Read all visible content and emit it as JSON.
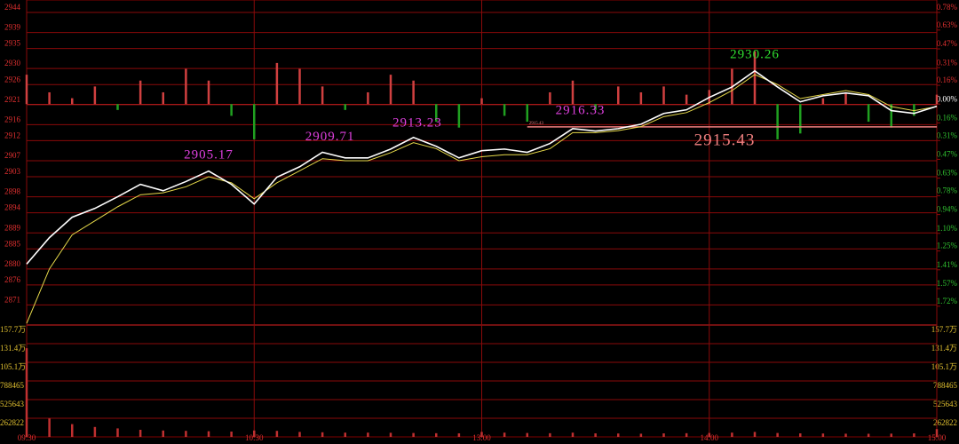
{
  "chart_data": {
    "type": "intraday",
    "x": [
      0,
      6,
      12,
      18,
      24,
      30,
      36,
      42,
      48,
      54,
      60,
      66,
      72,
      78,
      84,
      90,
      96,
      102,
      108,
      114,
      120,
      126,
      132,
      138,
      144,
      150,
      156,
      162,
      168,
      174,
      180,
      186,
      192,
      198,
      204,
      210,
      216,
      222,
      228,
      234,
      240
    ],
    "xlim": [
      0,
      240
    ],
    "xticks": [
      {
        "value": 0,
        "label": "09:30"
      },
      {
        "value": 60,
        "label": "10:30"
      },
      {
        "value": 120,
        "label": "13:00"
      },
      {
        "value": 180,
        "label": "14:00"
      },
      {
        "value": 240,
        "label": "15:00"
      }
    ],
    "ylim": [
      2866,
      2944
    ],
    "yticks": [
      2944,
      2939,
      2935,
      2930,
      2926,
      2921,
      2916,
      2912,
      2907,
      2903,
      2898,
      2894,
      2889,
      2885,
      2880,
      2876,
      2871
    ],
    "y2lim": [
      -1.88,
      0.78
    ],
    "y2ticks": [
      {
        "value": 0.78,
        "label": "0.78%"
      },
      {
        "value": 0.63,
        "label": "0.63%"
      },
      {
        "value": 0.47,
        "label": "0.47%"
      },
      {
        "value": 0.31,
        "label": "0.31%"
      },
      {
        "value": 0.16,
        "label": "0.16%"
      },
      {
        "value": 0,
        "label": "0.00%"
      },
      {
        "value": -0.16,
        "label": "0.16%"
      },
      {
        "value": -0.31,
        "label": "0.31%"
      },
      {
        "value": -0.47,
        "label": "0.47%"
      },
      {
        "value": -0.63,
        "label": "0.63%"
      },
      {
        "value": -0.78,
        "label": "0.78%"
      },
      {
        "value": -0.94,
        "label": "0.94%"
      },
      {
        "value": -1.1,
        "label": "1.10%"
      },
      {
        "value": -1.25,
        "label": "1.25%"
      },
      {
        "value": -1.41,
        "label": "1.41%"
      },
      {
        "value": -1.57,
        "label": "1.57%"
      },
      {
        "value": -1.72,
        "label": "1.72%"
      }
    ],
    "volume_lim": [
      0,
      1576932
    ],
    "volume_ticks": [
      {
        "value": 1576932,
        "label": "157.7万"
      },
      {
        "value": 1314110,
        "label": "131.4万"
      },
      {
        "value": 1051288,
        "label": "105.1万"
      },
      788465,
      525643,
      262822
    ],
    "series": [
      {
        "color": "#ffffff",
        "values": [
          2881.2,
          2887.8,
          2892.9,
          2895.1,
          2898.0,
          2901.1,
          2899.5,
          2901.8,
          2904.4,
          2901.1,
          2896.2,
          2902.9,
          2905.5,
          2909.1,
          2907.7,
          2907.7,
          2909.9,
          2912.8,
          2910.6,
          2907.7,
          2909.5,
          2909.9,
          2909.1,
          2911.3,
          2915.0,
          2914.4,
          2915.0,
          2916.1,
          2918.8,
          2919.7,
          2922.8,
          2925.4,
          2929.4,
          2925.4,
          2921.7,
          2923.2,
          2923.9,
          2923.2,
          2919.5,
          2918.8,
          2920.6
        ]
      },
      {
        "color": "#e6d94a",
        "values": [
          2866.4,
          2880.0,
          2888.5,
          2892.0,
          2895.5,
          2898.5,
          2899.0,
          2900.5,
          2903.0,
          2901.5,
          2897.5,
          2901.5,
          2904.5,
          2907.5,
          2907.0,
          2907.0,
          2909.0,
          2911.5,
          2910.0,
          2907.0,
          2908.0,
          2908.5,
          2908.5,
          2910.0,
          2914.0,
          2914.0,
          2914.5,
          2915.5,
          2918.0,
          2919.0,
          2921.5,
          2924.5,
          2928.5,
          2926.0,
          2922.5,
          2923.5,
          2924.5,
          2923.5,
          2920.5,
          2919.5,
          2920.5
        ]
      },
      {
        "axis": "y2",
        "values": [
          0.25,
          0.1,
          0.05,
          0.15,
          -0.05,
          0.2,
          0.1,
          0.3,
          0.2,
          -0.1,
          -0.3,
          0.35,
          0.3,
          0.15,
          -0.05,
          0.1,
          0.25,
          0.2,
          -0.15,
          -0.2,
          0.05,
          -0.1,
          -0.15,
          0.1,
          0.2,
          -0.05,
          0.15,
          0.1,
          0.15,
          0.08,
          0.12,
          0.3,
          0.45,
          -0.3,
          -0.25,
          0.05,
          0.1,
          -0.15,
          -0.2,
          -0.1,
          0.08
        ]
      },
      {
        "axis": "volume",
        "color": "#c03030",
        "values": [
          1250000,
          260000,
          180000,
          140000,
          120000,
          100000,
          90000,
          85000,
          80000,
          75000,
          90000,
          85000,
          70000,
          65000,
          60000,
          60000,
          58000,
          55000,
          52000,
          50000,
          70000,
          60000,
          55000,
          52000,
          60000,
          50000,
          48000,
          45000,
          50000,
          52000,
          55000,
          60000,
          70000,
          55000,
          50000,
          48000,
          45000,
          44000,
          46000,
          50000,
          110000
        ]
      }
    ],
    "annotations": [
      {
        "value": 2905.17,
        "x": 48,
        "color": "#e040e0"
      },
      {
        "value": 2909.71,
        "x": 80,
        "color": "#e040e0"
      },
      {
        "value": 2913.23,
        "x": 103,
        "color": "#e040e0"
      },
      {
        "value": 2916.33,
        "x": 146,
        "color": "#e040e0"
      },
      {
        "value": 2930.26,
        "x": 192,
        "color": "#30e030"
      }
    ],
    "reference_line": {
      "value": 2915.43,
      "x": 132,
      "color": "#f08080"
    }
  }
}
